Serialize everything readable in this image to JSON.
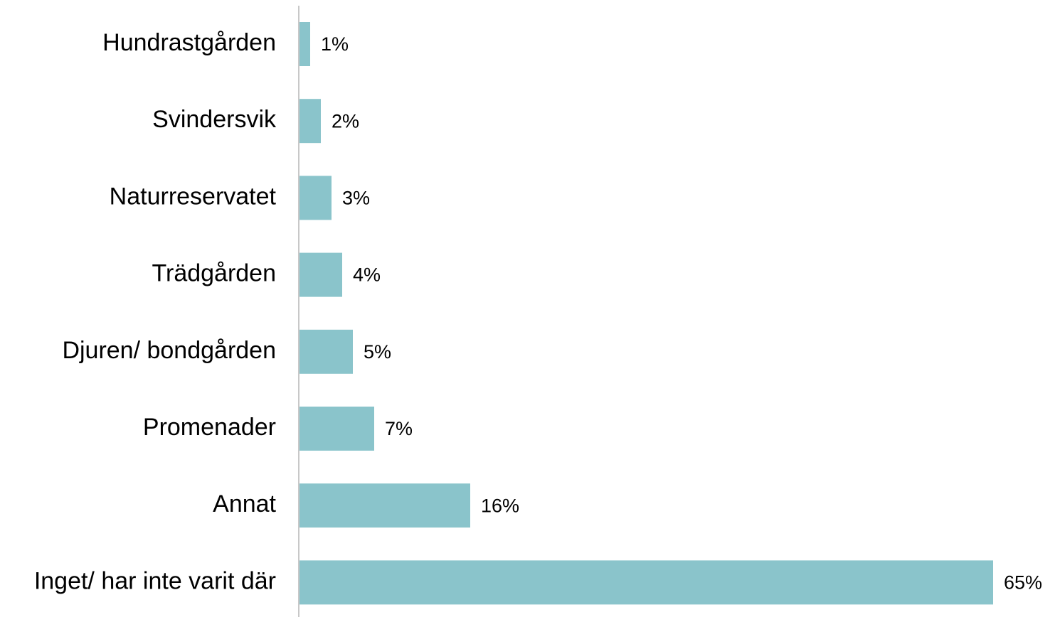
{
  "chart_data": {
    "type": "bar",
    "orientation": "horizontal",
    "categories": [
      "Hundrastgården",
      "Svindersvik",
      "Naturreservatet",
      "Trädgården",
      "Djuren/ bondgården",
      "Promenader",
      "Annat",
      "Inget/ har inte varit där"
    ],
    "values": [
      1,
      2,
      3,
      4,
      5,
      7,
      16,
      65
    ],
    "value_labels": [
      "1%",
      "2%",
      "3%",
      "4%",
      "5%",
      "7%",
      "16%",
      "65%"
    ],
    "color": "#8ac4cb"
  }
}
